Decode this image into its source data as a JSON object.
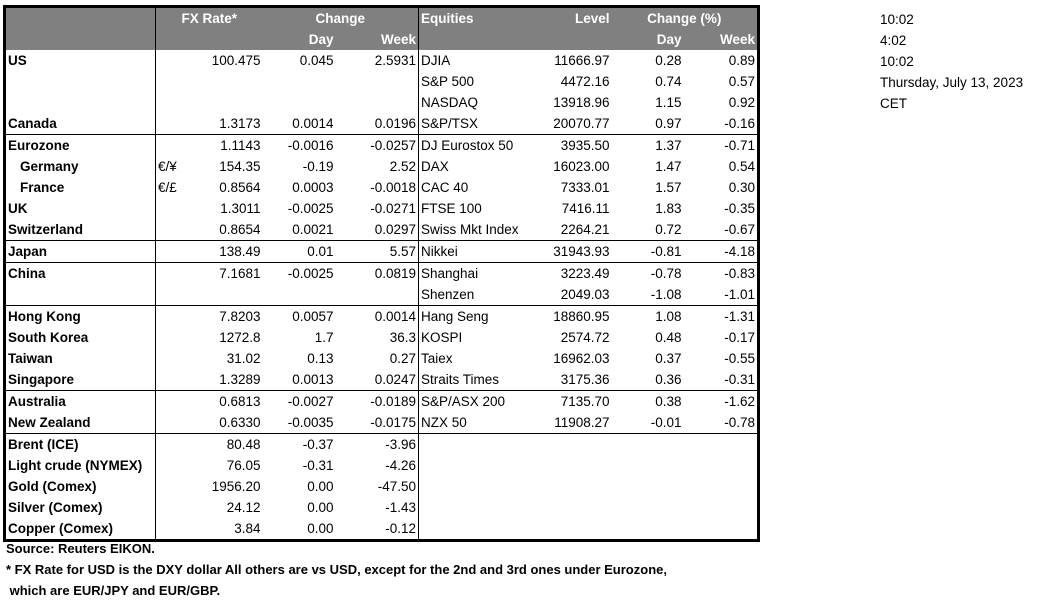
{
  "header": {
    "fx_rate": "FX Rate*",
    "change": "Change",
    "day": "Day",
    "week": "Week",
    "equities": "Equities",
    "level": "Level",
    "change_pct": "Change (%)"
  },
  "rows": [
    {
      "label": "US",
      "cur": "",
      "fx": "100.475",
      "fx_day": "0.045",
      "fx_week": "2.5931",
      "eq": "DJIA",
      "level": "11666.97",
      "eq_day": "0.28",
      "eq_week": "0.89"
    },
    {
      "label": "",
      "cur": "",
      "fx": "",
      "fx_day": "",
      "fx_week": "",
      "eq": "S&P 500",
      "level": "4472.16",
      "eq_day": "0.74",
      "eq_week": "0.57"
    },
    {
      "label": "",
      "cur": "",
      "fx": "",
      "fx_day": "",
      "fx_week": "",
      "eq": "NASDAQ",
      "level": "13918.96",
      "eq_day": "1.15",
      "eq_week": "0.92"
    },
    {
      "label": "Canada",
      "cur": "",
      "fx": "1.3173",
      "fx_day": "0.0014",
      "fx_week": "0.0196",
      "eq": "S&P/TSX",
      "level": "20070.77",
      "eq_day": "0.97",
      "eq_week": "-0.16"
    },
    {
      "label": "Eurozone",
      "cur": "",
      "fx": "1.1143",
      "fx_day": "-0.0016",
      "fx_week": "-0.0257",
      "eq": "DJ Eurostox 50",
      "level": "3935.50",
      "eq_day": "1.37",
      "eq_week": "-0.71"
    },
    {
      "label": "Germany",
      "cur": "€/¥",
      "fx": "154.35",
      "fx_day": "-0.19",
      "fx_week": "2.52",
      "eq": "DAX",
      "level": "16023.00",
      "eq_day": "1.47",
      "eq_week": "0.54"
    },
    {
      "label": "France",
      "cur": "€/£",
      "fx": "0.8564",
      "fx_day": "0.0003",
      "fx_week": "-0.0018",
      "eq": "CAC 40",
      "level": "7333.01",
      "eq_day": "1.57",
      "eq_week": "0.30"
    },
    {
      "label": "UK",
      "cur": "",
      "fx": "1.3011",
      "fx_day": "-0.0025",
      "fx_week": "-0.0271",
      "eq": "FTSE 100",
      "level": "7416.11",
      "eq_day": "1.83",
      "eq_week": "-0.35"
    },
    {
      "label": "Switzerland",
      "cur": "",
      "fx": "0.8654",
      "fx_day": "0.0021",
      "fx_week": "0.0297",
      "eq": "Swiss Mkt Index",
      "level": "2264.21",
      "eq_day": "0.72",
      "eq_week": "-0.67"
    },
    {
      "label": "Japan",
      "cur": "",
      "fx": "138.49",
      "fx_day": "0.01",
      "fx_week": "5.57",
      "eq": "Nikkei",
      "level": "31943.93",
      "eq_day": "-0.81",
      "eq_week": "-4.18"
    },
    {
      "label": "China",
      "cur": "",
      "fx": "7.1681",
      "fx_day": "-0.0025",
      "fx_week": "0.0819",
      "eq": "Shanghai",
      "level": "3223.49",
      "eq_day": "-0.78",
      "eq_week": "-0.83"
    },
    {
      "label": "",
      "cur": "",
      "fx": "",
      "fx_day": "",
      "fx_week": "",
      "eq": "Shenzen",
      "level": "2049.03",
      "eq_day": "-1.08",
      "eq_week": "-1.01"
    },
    {
      "label": "Hong Kong",
      "cur": "",
      "fx": "7.8203",
      "fx_day": "0.0057",
      "fx_week": "0.0014",
      "eq": "Hang Seng",
      "level": "18860.95",
      "eq_day": "1.08",
      "eq_week": "-1.31"
    },
    {
      "label": "South Korea",
      "cur": "",
      "fx": "1272.8",
      "fx_day": "1.7",
      "fx_week": "36.3",
      "eq": "KOSPI",
      "level": "2574.72",
      "eq_day": "0.48",
      "eq_week": "-0.17"
    },
    {
      "label": "Taiwan",
      "cur": "",
      "fx": "31.02",
      "fx_day": "0.13",
      "fx_week": "0.27",
      "eq": "Taiex",
      "level": "16962.03",
      "eq_day": "0.37",
      "eq_week": "-0.55"
    },
    {
      "label": "Singapore",
      "cur": "",
      "fx": "1.3289",
      "fx_day": "0.0013",
      "fx_week": "0.0247",
      "eq": "Straits Times",
      "level": "3175.36",
      "eq_day": "0.36",
      "eq_week": "-0.31"
    },
    {
      "label": "Australia",
      "cur": "",
      "fx": "0.6813",
      "fx_day": "-0.0027",
      "fx_week": "-0.0189",
      "eq": "S&P/ASX  200",
      "level": "7135.70",
      "eq_day": "0.38",
      "eq_week": "-1.62"
    },
    {
      "label": "New Zealand",
      "cur": "",
      "fx": "0.6330",
      "fx_day": "-0.0035",
      "fx_week": "-0.0175",
      "eq": "NZX 50",
      "level": "11908.27",
      "eq_day": "-0.01",
      "eq_week": "-0.78"
    },
    {
      "label": "Brent (ICE)",
      "cur": "",
      "fx": "80.48",
      "fx_day": "-0.37",
      "fx_week": "-3.96",
      "eq": "",
      "level": "",
      "eq_day": "",
      "eq_week": ""
    },
    {
      "label": "Light crude (NYMEX)",
      "cur": "",
      "fx": "76.05",
      "fx_day": "-0.31",
      "fx_week": "-4.26",
      "eq": "",
      "level": "",
      "eq_day": "",
      "eq_week": ""
    },
    {
      "label": "Gold (Comex)",
      "cur": "",
      "fx": "1956.20",
      "fx_day": "0.00",
      "fx_week": "-47.50",
      "eq": "",
      "level": "",
      "eq_day": "",
      "eq_week": ""
    },
    {
      "label": "Silver (Comex)",
      "cur": "",
      "fx": "24.12",
      "fx_day": "0.00",
      "fx_week": "-1.43",
      "eq": "",
      "level": "",
      "eq_day": "",
      "eq_week": ""
    },
    {
      "label": "Copper (Comex)",
      "cur": "",
      "fx": "3.84",
      "fx_day": "0.00",
      "fx_week": "-0.12",
      "eq": "",
      "level": "",
      "eq_day": "",
      "eq_week": ""
    }
  ],
  "side": [
    "10:02",
    "4:02",
    "10:02",
    "Thursday, July 13, 2023",
    "CET"
  ],
  "footer": {
    "source": "Source:  Reuters EIKON.",
    "note1": "* FX Rate for USD is the DXY dollar  All others are vs USD, except for the 2nd and 3rd ones under Eurozone,",
    "note2": " which are EUR/JPY and EUR/GBP."
  }
}
